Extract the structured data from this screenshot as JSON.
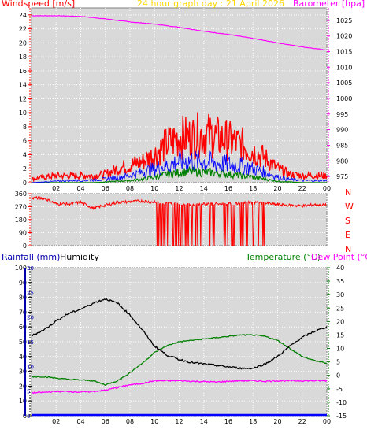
{
  "header": {
    "title": "24 hour graph day : 21 April 2026",
    "left_title": "Windspeed [m/s]",
    "right_title": "Barometer [hpa]"
  },
  "colors": {
    "plot_bg": "#d9d9d9",
    "wind_gust": "#ff0000",
    "wind_avg": "#0000ff",
    "wind_low": "#008000",
    "barometer": "#ff00ff",
    "direction": "#ff0000",
    "humidity": "#000000",
    "temperature": "#008000",
    "dewpoint": "#ff00ff",
    "rain": "#0000ff",
    "title": "#ffd700",
    "axis_red": "#ff0000",
    "axis_magenta": "#ff00ff",
    "axis_blue": "#0000aa",
    "axis_green": "#008000"
  },
  "direction_labels": [
    "N",
    "W",
    "S",
    "E",
    "N"
  ],
  "chart_data": [
    {
      "type": "line",
      "title": "24 hour graph day : 21 April 2026",
      "xlabel": "",
      "x_ticks": [
        "02",
        "04",
        "06",
        "08",
        "10",
        "12",
        "14",
        "16",
        "18",
        "20",
        "22",
        "00"
      ],
      "xlim": [
        0,
        24
      ],
      "left_axis": {
        "label": "Windspeed [m/s]",
        "ylim": [
          0,
          25
        ],
        "ticks": [
          "0",
          "2",
          "4",
          "6",
          "8",
          "10",
          "12",
          "14",
          "16",
          "18",
          "20",
          "22",
          "24"
        ]
      },
      "right_axis": {
        "label": "Barometer [hpa]",
        "ylim": [
          973,
          1029
        ],
        "ticks": [
          "975",
          "980",
          "985",
          "990",
          "995",
          "1000",
          "1005",
          "1010",
          "1015",
          "1020",
          "1025"
        ]
      },
      "grid": true,
      "series": [
        {
          "axis": "right",
          "x": [
            0,
            2,
            4,
            6,
            8,
            10,
            12,
            14,
            16,
            18,
            20,
            22,
            24
          ],
          "values": [
            1026.5,
            1026.5,
            1026.3,
            1025.5,
            1024.5,
            1023.8,
            1022.8,
            1021.5,
            1020.5,
            1019.2,
            1017.8,
            1016.5,
            1015.5
          ]
        },
        {
          "axis": "left",
          "x": [
            0,
            1,
            2,
            3,
            4,
            5,
            6,
            7,
            8,
            9,
            10,
            11,
            12,
            13,
            14,
            15,
            16,
            17,
            18,
            19,
            20,
            21,
            22,
            23,
            24
          ],
          "values": [
            0.5,
            0.8,
            1,
            1,
            1,
            1,
            1.2,
            2,
            2.5,
            3,
            4,
            5.5,
            6.5,
            6.5,
            7,
            6.5,
            6,
            5.5,
            4.5,
            3.5,
            2,
            1.2,
            1,
            1,
            1
          ]
        },
        {
          "axis": "left",
          "x": [
            0,
            1,
            2,
            3,
            4,
            5,
            6,
            7,
            8,
            9,
            10,
            11,
            12,
            13,
            14,
            15,
            16,
            17,
            18,
            19,
            20,
            21,
            22,
            23,
            24
          ],
          "values": [
            0,
            0.1,
            0.2,
            0.3,
            0.3,
            0.4,
            0.5,
            0.8,
            1,
            1.5,
            2,
            2.5,
            3,
            3.2,
            3,
            2.8,
            2.6,
            2.4,
            2,
            1.5,
            0.8,
            0.5,
            0.3,
            0.3,
            0.3
          ]
        },
        {
          "axis": "left",
          "x": [
            0,
            1,
            2,
            3,
            4,
            5,
            6,
            7,
            8,
            9,
            10,
            11,
            12,
            13,
            14,
            15,
            16,
            17,
            18,
            19,
            20,
            21,
            22,
            23,
            24
          ],
          "values": [
            0,
            0,
            0,
            0,
            0,
            0,
            0.1,
            0.2,
            0.3,
            0.5,
            0.8,
            1.2,
            1.5,
            1.6,
            1.5,
            1.4,
            1.2,
            1,
            0.8,
            0.5,
            0.2,
            0.1,
            0,
            0,
            0
          ]
        }
      ]
    },
    {
      "type": "line",
      "x_ticks": [],
      "xlim": [
        0,
        24
      ],
      "left_axis": {
        "ylim": [
          0,
          360
        ],
        "ticks": [
          "0",
          "90",
          "180",
          "270",
          "360"
        ]
      },
      "grid": true,
      "series": [
        {
          "x": [
            0,
            1,
            2,
            3,
            4,
            5,
            6,
            7,
            8,
            9,
            10,
            11,
            12,
            13,
            14,
            15,
            16,
            17,
            18,
            19,
            20,
            21,
            22,
            23,
            24
          ],
          "values": [
            330,
            330,
            290,
            290,
            300,
            260,
            280,
            300,
            305,
            310,
            300,
            295,
            290,
            285,
            290,
            290,
            290,
            295,
            300,
            295,
            285,
            280,
            275,
            285,
            280
          ]
        }
      ]
    },
    {
      "type": "line",
      "x_ticks": [
        "02",
        "04",
        "06",
        "08",
        "10",
        "12",
        "14",
        "16",
        "18",
        "20",
        "22",
        "00"
      ],
      "xlim": [
        0,
        24
      ],
      "left_axis": {
        "label": "Rainfall (mm)",
        "ylim": [
          0,
          100
        ],
        "ticks": [
          "0",
          "10",
          "20",
          "30",
          "40",
          "50",
          "60",
          "70",
          "80",
          "90",
          "100"
        ]
      },
      "rain_axis": {
        "ylim": [
          0,
          30
        ],
        "ticks": [
          "0",
          "5",
          "10",
          "15",
          "20",
          "25",
          "30"
        ]
      },
      "humidity_label": "Humidity",
      "right_axis": {
        "labels": [
          "Temperature (°C)",
          "Dew Point (°C)"
        ],
        "ylim": [
          -15,
          40
        ],
        "ticks": [
          "-15",
          "-10",
          "-5",
          "0",
          "5",
          "10",
          "15",
          "20",
          "25",
          "30",
          "35",
          "40"
        ]
      },
      "grid": true,
      "series": [
        {
          "axis": "left",
          "x": [
            0,
            1,
            2,
            3,
            4,
            5,
            6,
            7,
            8,
            9,
            10,
            11,
            12,
            13,
            14,
            15,
            16,
            17,
            18,
            19,
            20,
            21,
            22,
            23,
            24
          ],
          "values": [
            54,
            58,
            64,
            69,
            72,
            76,
            79,
            76,
            68,
            58,
            47,
            41,
            38,
            36,
            35,
            34,
            33,
            32,
            32,
            35,
            40,
            47,
            53,
            57,
            60
          ]
        },
        {
          "axis": "right",
          "x": [
            0,
            1,
            2,
            3,
            4,
            5,
            6,
            7,
            8,
            9,
            10,
            11,
            12,
            13,
            14,
            15,
            16,
            17,
            18,
            19,
            20,
            21,
            22,
            23,
            24
          ],
          "values": [
            -0.5,
            -0.5,
            -1,
            -1.5,
            -1.7,
            -2,
            -3.5,
            -2,
            1,
            4.5,
            8.5,
            11,
            12.5,
            13,
            13.5,
            14,
            14.5,
            15,
            15,
            14.5,
            13,
            10,
            7,
            5.5,
            4.5
          ]
        },
        {
          "axis": "right",
          "x": [
            0,
            1,
            2,
            3,
            4,
            5,
            6,
            7,
            8,
            9,
            10,
            11,
            12,
            13,
            14,
            15,
            16,
            17,
            18,
            19,
            20,
            21,
            22,
            23,
            24
          ],
          "values": [
            -6.5,
            -6.3,
            -6,
            -6,
            -6.2,
            -6,
            -5.5,
            -4.5,
            -3.5,
            -3,
            -2,
            -2,
            -2,
            -2.2,
            -2.3,
            -2.5,
            -2.2,
            -2,
            -2,
            -2.2,
            -2,
            -2,
            -2,
            -2,
            -2
          ]
        },
        {
          "axis": "rain",
          "x": [
            0,
            24
          ],
          "values": [
            0,
            0
          ]
        }
      ]
    }
  ]
}
